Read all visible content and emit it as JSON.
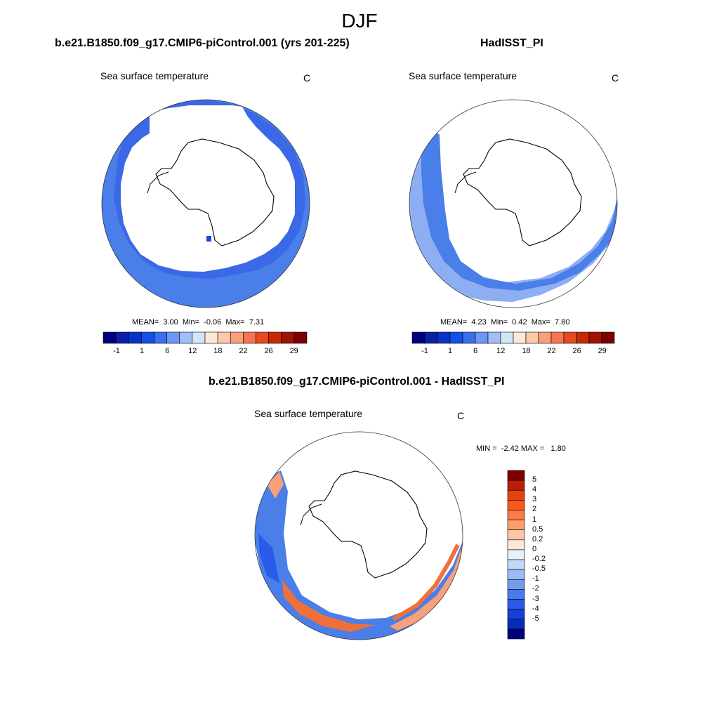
{
  "figure": {
    "title": "DJF"
  },
  "panels": [
    {
      "id": "model",
      "title": "b.e21.B1850.f09_g17.CMIP6-piControl.001 (yrs 201-225)",
      "variable": "Sea surface temperature",
      "units": "C",
      "stats": {
        "mean_label": "MEAN=",
        "mean": "3.00",
        "min_label": "Min=",
        "min": "-0.06",
        "max_label": "Max=",
        "max": "7.31"
      }
    },
    {
      "id": "obs",
      "title": "HadISST_PI",
      "variable": "Sea surface temperature",
      "units": "C",
      "stats": {
        "mean_label": "MEAN=",
        "mean": "4.23",
        "min_label": "Min=",
        "min": "0.42",
        "max_label": "Max=",
        "max": "7.80"
      }
    },
    {
      "id": "diff",
      "title": "b.e21.B1850.f09_g17.CMIP6-piControl.001 - HadISST_PI",
      "variable": "Sea surface temperature",
      "units": "C",
      "stats": {
        "min_label": "MIN =",
        "min": "-2.42",
        "max_label": "MAX =",
        "max": "1.80"
      }
    }
  ],
  "abs_colorbar": {
    "colors": [
      "#00007f",
      "#0a1fa8",
      "#0a32c8",
      "#1450e6",
      "#3c6ef0",
      "#6e96f5",
      "#a0bef8",
      "#d2e6fa",
      "#fde8d8",
      "#fbc8aa",
      "#f8a07a",
      "#f57550",
      "#e84a1e",
      "#c82808",
      "#a01204",
      "#7c0000"
    ],
    "tick_labels": [
      "-1",
      "1",
      "6",
      "12",
      "18",
      "22",
      "26",
      "29"
    ]
  },
  "diff_colorbar": {
    "colors": [
      "#7c0000",
      "#b81e08",
      "#e8400f",
      "#f85a1e",
      "#fa7c46",
      "#fb9e72",
      "#fcc6a4",
      "#fde8d6",
      "#e6f0fb",
      "#c4d7f7",
      "#9cbbf3",
      "#729cee",
      "#4a7aea",
      "#2a5ae8",
      "#1640d8",
      "#0a2cb6",
      "#00007f"
    ],
    "tick_labels": [
      "5",
      "4",
      "3",
      "2",
      "1",
      "0.5",
      "0.2",
      "0",
      "-0.2",
      "-0.5",
      "-1",
      "-2",
      "-3",
      "-4",
      "-5"
    ]
  }
}
